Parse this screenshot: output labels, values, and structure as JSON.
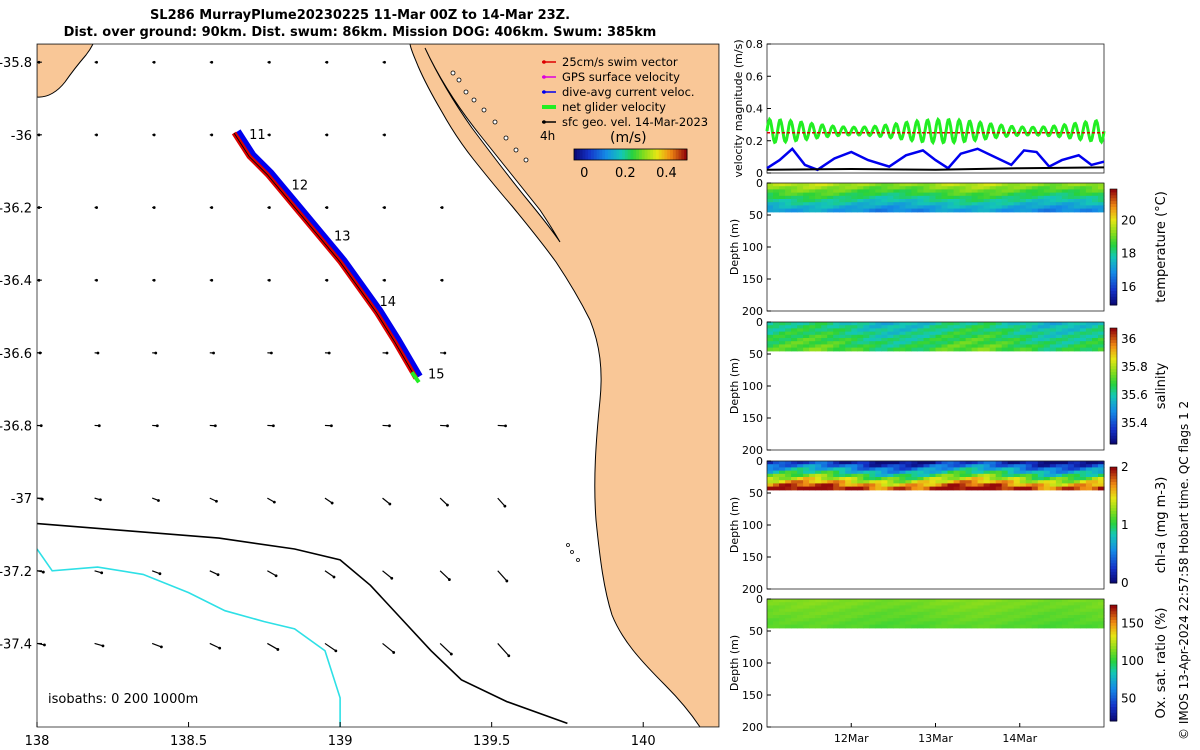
{
  "title": {
    "line1": "SL286 MurrayPlume20230225 11-Mar 00Z to 14-Mar 23Z.",
    "line2": "Dist. over ground: 90km. Dist. swum: 86km. Mission DOG: 406km. Swum: 385km"
  },
  "watermark": "© IMOS 13-Apr-2024 22:57:58 Hobart time. QC flags 1  2",
  "colors": {
    "land": "#f9c797",
    "coast": "#000000",
    "isobath_200": "#000000",
    "isobath_1000": "#2ee0e6",
    "swim_vector": "#dd0000",
    "gps_surface": "#dd00dd",
    "dive_avg": "#0000ee",
    "net_glider": "#22ee22",
    "sfc_geo": "#000000"
  },
  "chart_data": [
    {
      "id": "map",
      "type": "map",
      "xlim": [
        138,
        140.25
      ],
      "ylim": [
        -37.63,
        -35.75
      ],
      "xticks": [
        "138",
        "138.5",
        "139",
        "139.5",
        "140"
      ],
      "xtick_values": [
        138,
        138.5,
        139,
        139.5,
        140
      ],
      "yticks": [
        "-35.8",
        "-36",
        "-36.2",
        "-36.4",
        "-36.6",
        "-36.8",
        "-37",
        "-37.2",
        "-37.4"
      ],
      "ytick_values": [
        -35.8,
        -36,
        -36.2,
        -36.4,
        -36.6,
        -36.8,
        -37,
        -37.2,
        -37.4
      ],
      "legend": {
        "items": [
          {
            "label": "25cm/s swim vector",
            "color_key": "swim_vector"
          },
          {
            "label": "GPS surface velocity",
            "color_key": "gps_surface"
          },
          {
            "label": "dive-avg current veloc.",
            "color_key": "dive_avg"
          },
          {
            "label": "net glider velocity",
            "color_key": "net_glider"
          },
          {
            "label": "sfc geo. vel. 14-Mar-2023",
            "color_key": "sfc_geo"
          }
        ],
        "interval": "4h",
        "colorbar_title": "(m/s)",
        "colorbar_ticks": [
          "0",
          "0.2",
          "0.4"
        ],
        "colorbar_tick_values": [
          0,
          0.2,
          0.4
        ],
        "colorbar_range": [
          -0.05,
          0.5
        ]
      },
      "track": [
        {
          "lon": 138.65,
          "lat": -35.995
        },
        {
          "lon": 138.7,
          "lat": -36.06
        },
        {
          "lon": 138.76,
          "lat": -36.11
        },
        {
          "lon": 138.8,
          "lat": -36.15
        },
        {
          "lon": 138.86,
          "lat": -36.21
        },
        {
          "lon": 138.93,
          "lat": -36.28
        },
        {
          "lon": 139.0,
          "lat": -36.35
        },
        {
          "lon": 139.06,
          "lat": -36.42
        },
        {
          "lon": 139.12,
          "lat": -36.49
        },
        {
          "lon": 139.18,
          "lat": -36.57
        },
        {
          "lon": 139.25,
          "lat": -36.67
        }
      ],
      "day_labels": [
        {
          "label": "11",
          "lon": 138.68,
          "lat": -36.0
        },
        {
          "label": "12",
          "lon": 138.82,
          "lat": -36.14
        },
        {
          "label": "13",
          "lon": 138.96,
          "lat": -36.28
        },
        {
          "label": "14",
          "lon": 139.11,
          "lat": -36.46
        },
        {
          "label": "15",
          "lon": 139.27,
          "lat": -36.66
        }
      ],
      "isobaths_label": "isobaths: 0   200  1000m",
      "isobaths": [
        {
          "depth": "200m",
          "color_key": "isobath_200",
          "points": [
            [
              138,
              -37.07
            ],
            [
              138.3,
              -37.09
            ],
            [
              138.6,
              -37.11
            ],
            [
              138.85,
              -37.14
            ],
            [
              139.0,
              -37.17
            ],
            [
              139.1,
              -37.24
            ],
            [
              139.2,
              -37.33
            ],
            [
              139.3,
              -37.42
            ],
            [
              139.4,
              -37.5
            ],
            [
              139.55,
              -37.56
            ],
            [
              139.75,
              -37.62
            ]
          ]
        },
        {
          "depth": "1000m",
          "color_key": "isobath_1000",
          "points": [
            [
              138,
              -37.14
            ],
            [
              138.05,
              -37.2
            ],
            [
              138.2,
              -37.19
            ],
            [
              138.35,
              -37.21
            ],
            [
              138.5,
              -37.26
            ],
            [
              138.62,
              -37.31
            ],
            [
              138.75,
              -37.34
            ],
            [
              138.85,
              -37.36
            ],
            [
              138.95,
              -37.42
            ],
            [
              139.0,
              -37.55
            ],
            [
              139.0,
              -37.63
            ]
          ]
        }
      ],
      "current_grid": {
        "lons": [
          138,
          138.19,
          138.38,
          138.57,
          138.76,
          138.95,
          139.14,
          139.33,
          139.52
        ],
        "lats": [
          -35.8,
          -36.0,
          -36.2,
          -36.4,
          -36.6,
          -36.8,
          -37.0,
          -37.2,
          -37.4
        ],
        "scale_note": "sfc geo. vel. 14-Mar-2023"
      }
    },
    {
      "id": "velocity",
      "type": "line",
      "ylabel": "velocity magnitude (m/s)",
      "ylim": [
        0,
        0.8
      ],
      "yticks": [
        "0",
        "0.2",
        "0.4",
        "0.6",
        "0.8"
      ],
      "ytick_values": [
        0,
        0.2,
        0.4,
        0.6,
        0.8
      ],
      "xlim": [
        11.0,
        15.0
      ],
      "series": [
        {
          "name": "net glider velocity",
          "color_key": "net_glider",
          "mean": 0.26,
          "amplitude": 0.06,
          "period_days": 0.125
        },
        {
          "name": "25cm/s swim vector",
          "color_key": "swim_vector",
          "value": 0.25
        },
        {
          "name": "dive-avg current veloc.",
          "color_key": "dive_avg",
          "x": [
            11.0,
            11.15,
            11.3,
            11.45,
            11.6,
            11.8,
            12.0,
            12.2,
            12.45,
            12.65,
            12.85,
            13.0,
            13.15,
            13.3,
            13.5,
            13.7,
            13.9,
            14.05,
            14.2,
            14.35,
            14.5,
            14.7,
            14.85,
            15.0
          ],
          "y": [
            0.03,
            0.08,
            0.15,
            0.05,
            0.02,
            0.09,
            0.13,
            0.08,
            0.04,
            0.11,
            0.14,
            0.08,
            0.03,
            0.12,
            0.15,
            0.1,
            0.05,
            0.14,
            0.13,
            0.04,
            0.08,
            0.11,
            0.05,
            0.07
          ]
        },
        {
          "name": "sfc geo. vel.",
          "color_key": "sfc_geo",
          "x": [
            11.0,
            12.0,
            13.0,
            14.0,
            15.0
          ],
          "y": [
            0.02,
            0.025,
            0.02,
            0.03,
            0.035
          ]
        }
      ]
    },
    {
      "id": "temperature",
      "type": "heatmap",
      "colorbar_label": "temperature (°C)",
      "clim": [
        14.9,
        21.9
      ],
      "cbar_ticks": [
        "16",
        "18",
        "20"
      ],
      "cbar_tick_values": [
        16,
        18,
        20
      ],
      "ylabel": "Depth (m)",
      "ylim": [
        0,
        200
      ],
      "yticks": [
        "0",
        "50",
        "100",
        "150",
        "200"
      ],
      "ytick_values": [
        0,
        50,
        100,
        150,
        200
      ],
      "bottom_depth": 45,
      "surface_value": 19.5,
      "bottom_value": 17.0,
      "accent_value": 21.0
    },
    {
      "id": "salinity",
      "type": "heatmap",
      "colorbar_label": "salinity",
      "clim": [
        35.25,
        36.08
      ],
      "cbar_ticks": [
        "35.4",
        "35.6",
        "35.8",
        "36"
      ],
      "cbar_tick_values": [
        35.4,
        35.6,
        35.8,
        36
      ],
      "ylabel": "Depth (m)",
      "ylim": [
        0,
        200
      ],
      "yticks": [
        "0",
        "50",
        "100",
        "150",
        "200"
      ],
      "ytick_values": [
        0,
        50,
        100,
        150,
        200
      ],
      "bottom_depth": 45,
      "surface_value": 35.6,
      "bottom_value": 35.7,
      "accent_value": 35.85
    },
    {
      "id": "chla",
      "type": "heatmap",
      "colorbar_label": "chl-a (mg m-3)",
      "clim": [
        0,
        2
      ],
      "cbar_ticks": [
        "0",
        "1",
        "2"
      ],
      "cbar_tick_values": [
        0,
        1,
        2
      ],
      "ylabel": "Depth (m)",
      "ylim": [
        0,
        200
      ],
      "yticks": [
        "0",
        "50",
        "100",
        "150",
        "200"
      ],
      "ytick_values": [
        0,
        50,
        100,
        150,
        200
      ],
      "bottom_depth": 45,
      "surface_value": 0.15,
      "bottom_value": 1.95,
      "accent_value": 1.2
    },
    {
      "id": "oxygen",
      "type": "heatmap",
      "colorbar_label": "Ox. sat. ratio (%)",
      "clim": [
        20,
        175
      ],
      "cbar_ticks": [
        "50",
        "100",
        "150"
      ],
      "cbar_tick_values": [
        50,
        100,
        150
      ],
      "ylabel": "Depth (m)",
      "ylim": [
        0,
        200
      ],
      "yticks": [
        "0",
        "50",
        "100",
        "150",
        "200"
      ],
      "ytick_values": [
        0,
        50,
        100,
        150,
        200
      ],
      "bottom_depth": 45,
      "surface_value": 115,
      "bottom_value": 108,
      "accent_value": 125,
      "xticks": [
        "12Mar",
        "13Mar",
        "14Mar"
      ],
      "xtick_values": [
        12,
        13,
        14
      ]
    }
  ]
}
